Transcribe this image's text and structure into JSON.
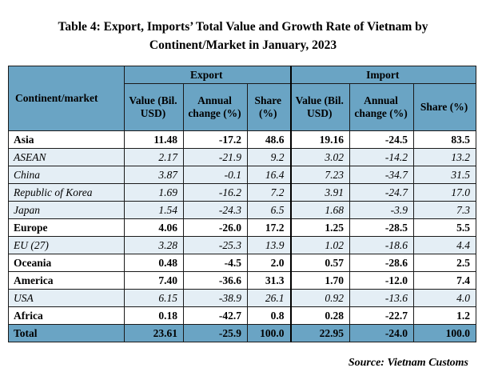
{
  "title_line1": "Table 4: Export, Imports’ Total Value and Growth Rate of Vietnam by",
  "title_line2": "Continent/Market in January, 2023",
  "header": {
    "col_name": "Continent/market",
    "export": "Export",
    "import": "Import",
    "value": "Value (Bil. USD)",
    "annual": "Annual change (%)",
    "share": "Share (%)"
  },
  "rows": [
    {
      "name": "Asia",
      "type": "main",
      "ev": "11.48",
      "ea": "-17.2",
      "es": "48.6",
      "iv": "19.16",
      "ia": "-24.5",
      "is": "83.5"
    },
    {
      "name": "ASEAN",
      "type": "sub",
      "ev": "2.17",
      "ea": "-21.9",
      "es": "9.2",
      "iv": "3.02",
      "ia": "-14.2",
      "is": "13.2"
    },
    {
      "name": "China",
      "type": "sub",
      "ev": "3.87",
      "ea": "-0.1",
      "es": "16.4",
      "iv": "7.23",
      "ia": "-34.7",
      "is": "31.5"
    },
    {
      "name": "Republic of Korea",
      "type": "sub",
      "ev": "1.69",
      "ea": "-16.2",
      "es": "7.2",
      "iv": "3.91",
      "ia": "-24.7",
      "is": "17.0"
    },
    {
      "name": "Japan",
      "type": "sub",
      "ev": "1.54",
      "ea": "-24.3",
      "es": "6.5",
      "iv": "1.68",
      "ia": "-3.9",
      "is": "7.3"
    },
    {
      "name": "Europe",
      "type": "main",
      "ev": "4.06",
      "ea": "-26.0",
      "es": "17.2",
      "iv": "1.25",
      "ia": "-28.5",
      "is": "5.5"
    },
    {
      "name": "EU (27)",
      "type": "sub",
      "ev": "3.28",
      "ea": "-25.3",
      "es": "13.9",
      "iv": "1.02",
      "ia": "-18.6",
      "is": "4.4"
    },
    {
      "name": "Oceania",
      "type": "main",
      "ev": "0.48",
      "ea": "-4.5",
      "es": "2.0",
      "iv": "0.57",
      "ia": "-28.6",
      "is": "2.5"
    },
    {
      "name": "America",
      "type": "main",
      "ev": "7.40",
      "ea": "-36.6",
      "es": "31.3",
      "iv": "1.70",
      "ia": "-12.0",
      "is": "7.4"
    },
    {
      "name": "USA",
      "type": "sub",
      "ev": "6.15",
      "ea": "-38.9",
      "es": "26.1",
      "iv": "0.92",
      "ia": "-13.6",
      "is": "4.0"
    },
    {
      "name": "Africa",
      "type": "main",
      "ev": "0.18",
      "ea": "-42.7",
      "es": "0.8",
      "iv": "0.28",
      "ia": "-22.7",
      "is": "1.2"
    },
    {
      "name": "Total",
      "type": "total",
      "ev": "23.61",
      "ea": "-25.9",
      "es": "100.0",
      "iv": "22.95",
      "ia": "-24.0",
      "is": "100.0"
    }
  ],
  "source": "Source: Vietnam Customs",
  "colors": {
    "header_blue": "#6aa4c4",
    "sub_row": "#e4eef5"
  }
}
